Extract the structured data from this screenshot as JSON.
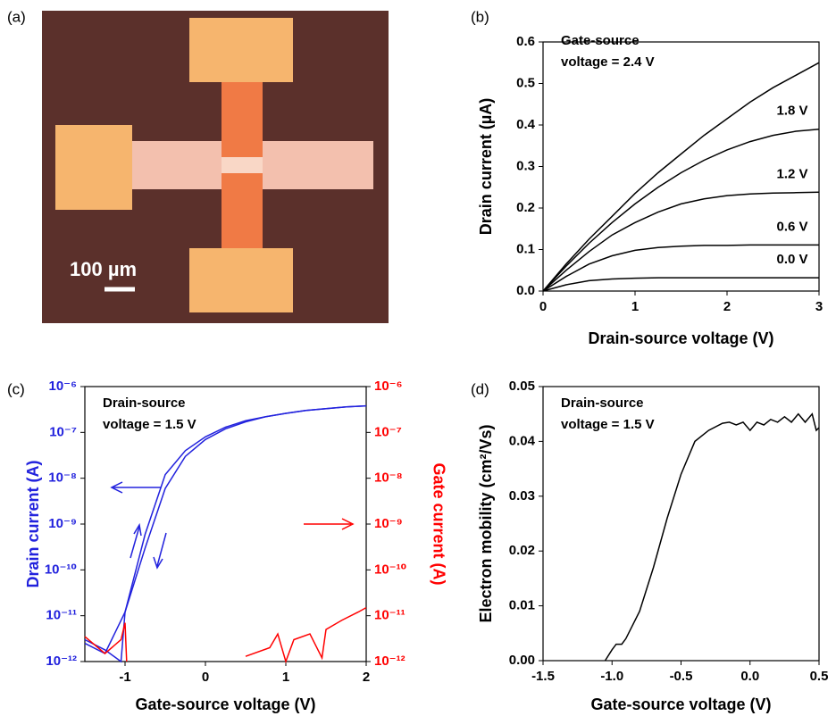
{
  "image_panel": {
    "label": "(a)",
    "scale_bar": "100 µm"
  },
  "chart_data": [
    {
      "type": "line",
      "panel_label": "(b)",
      "annotations": [
        "Gate-source",
        "voltage = 2.4 V"
      ],
      "x_label": "Drain-source voltage (V)",
      "y_label": "Drain current (µA)",
      "xlim": [
        0,
        3
      ],
      "xticks": [
        0,
        1,
        2,
        3
      ],
      "ylim": [
        0,
        0.6
      ],
      "yticks": [
        {
          "value": 0,
          "label": "0.0"
        },
        0.1,
        0.2,
        0.3,
        0.4,
        0.5,
        0.6
      ],
      "x": [
        0,
        0.25,
        0.5,
        0.75,
        1,
        1.25,
        1.5,
        1.75,
        2,
        2.25,
        2.5,
        2.75,
        3
      ],
      "series": [
        {
          "color": "#000000",
          "values": [
            0,
            0.065,
            0.125,
            0.18,
            0.235,
            0.285,
            0.33,
            0.375,
            0.415,
            0.455,
            0.49,
            0.52,
            0.55
          ]
        },
        {
          "name": "1.8 V",
          "color": "#000000",
          "values": [
            0,
            0.06,
            0.115,
            0.165,
            0.21,
            0.25,
            0.285,
            0.315,
            0.34,
            0.36,
            0.375,
            0.385,
            0.39
          ]
        },
        {
          "name": "1.2 V",
          "color": "#000000",
          "values": [
            0,
            0.05,
            0.095,
            0.135,
            0.165,
            0.19,
            0.21,
            0.222,
            0.23,
            0.234,
            0.236,
            0.237,
            0.238
          ]
        },
        {
          "name": "0.6 V",
          "color": "#000000",
          "values": [
            0,
            0.035,
            0.065,
            0.085,
            0.098,
            0.105,
            0.108,
            0.11,
            0.11,
            0.111,
            0.111,
            0.111,
            0.111
          ]
        },
        {
          "name": "0.0 V",
          "color": "#000000",
          "values": [
            0,
            0.015,
            0.025,
            0.029,
            0.031,
            0.032,
            0.032,
            0.032,
            0.032,
            0.032,
            0.032,
            0.032,
            0.032
          ]
        }
      ]
    },
    {
      "type": "line",
      "panel_label": "(c)",
      "annotations": [
        "Drain-source",
        "voltage = 1.5 V"
      ],
      "x_label": "Gate-source voltage (V)",
      "y_label": "Drain current (A)",
      "y2_label": "Gate current (A)",
      "log_y": true,
      "xlim": [
        -1.5,
        2
      ],
      "xticks": [
        -1,
        0,
        1,
        2
      ],
      "ylim": [
        1e-12,
        1e-06
      ],
      "yticks": [
        {
          "value": 1e-12,
          "label": "10⁻¹²"
        },
        {
          "value": 1e-11,
          "label": "10⁻¹¹"
        },
        {
          "value": 1e-10,
          "label": "10⁻¹⁰"
        },
        {
          "value": 1e-09,
          "label": "10⁻⁹"
        },
        {
          "value": 1e-08,
          "label": "10⁻⁸"
        },
        {
          "value": 1e-07,
          "label": "10⁻⁷"
        },
        {
          "value": 1e-06,
          "label": "10⁻⁶"
        }
      ],
      "y2lim": [
        1e-12,
        1e-06
      ],
      "y2ticks": [
        {
          "value": 1e-12,
          "label": "10⁻¹²"
        },
        {
          "value": 1e-11,
          "label": "10⁻¹¹"
        },
        {
          "value": 1e-10,
          "label": "10⁻¹⁰"
        },
        {
          "value": 1e-09,
          "label": "10⁻⁹"
        },
        {
          "value": 1e-08,
          "label": "10⁻⁸"
        },
        {
          "value": 1e-07,
          "label": "10⁻⁷"
        },
        {
          "value": 1e-06,
          "label": "10⁻⁶"
        }
      ],
      "series": [
        {
          "color": "#2222dd",
          "x": [
            -1.5,
            -1.25,
            -1,
            -0.75,
            -0.5,
            -0.25,
            0,
            0.25,
            0.5,
            0.75,
            1,
            1.25,
            1.5,
            1.75,
            2
          ],
          "values": [
            2.5e-12,
            1.5e-12,
            1.2e-11,
            6e-10,
            1.2e-08,
            4e-08,
            8e-08,
            1.3e-07,
            1.8e-07,
            2.2e-07,
            2.6e-07,
            3e-07,
            3.3e-07,
            3.6e-07,
            3.8e-07
          ]
        },
        {
          "color": "#2222dd",
          "x": [
            -1.5,
            -1.25,
            -1.05,
            -1,
            -0.75,
            -0.5,
            -0.25,
            0,
            0.25,
            0.5,
            0.75,
            1,
            1.25,
            1.5,
            1.75,
            2
          ],
          "values": [
            3e-12,
            1.8e-12,
            1e-12,
            1.2e-11,
            3e-10,
            6e-09,
            3e-08,
            7e-08,
            1.2e-07,
            1.7e-07,
            2.2e-07,
            2.6e-07,
            3e-07,
            3.3e-07,
            3.6e-07,
            3.8e-07
          ]
        },
        {
          "color": "#ff0000",
          "axis": "y2",
          "x": [
            -1.5,
            -1.25,
            -1.05,
            -1,
            -0.98,
            0.3,
            0.5,
            0.8,
            0.9,
            1.0,
            1.1,
            1.3,
            1.45,
            1.5,
            1.7,
            1.9,
            2
          ],
          "values": [
            3.5e-12,
            1.5e-12,
            3e-12,
            7e-12,
            1e-12,
            null,
            1.3e-12,
            2e-12,
            4e-12,
            1e-12,
            3e-12,
            4e-12,
            1.2e-12,
            5e-12,
            8e-12,
            1.2e-11,
            1.5e-11
          ]
        }
      ]
    },
    {
      "type": "line",
      "panel_label": "(d)",
      "annotations": [
        "Drain-source",
        "voltage = 1.5 V"
      ],
      "x_label": "Gate-source voltage (V)",
      "y_label": "Electron mobility (cm²/Vs)",
      "xlim": [
        -1.5,
        0.5
      ],
      "xticks": [
        -1.5,
        {
          "value": -1,
          "label": "-1.0"
        },
        -0.5,
        {
          "value": 0,
          "label": "0.0"
        },
        0.5
      ],
      "ylim": [
        0,
        0.05
      ],
      "yticks": [
        {
          "value": 0,
          "label": "0.00"
        },
        {
          "value": 0.01,
          "label": "0.01"
        },
        {
          "value": 0.02,
          "label": "0.02"
        },
        {
          "value": 0.03,
          "label": "0.03"
        },
        {
          "value": 0.04,
          "label": "0.04"
        },
        {
          "value": 0.05,
          "label": "0.05"
        }
      ],
      "series": [
        {
          "color": "#000000",
          "x": [
            -1.05,
            -1,
            -0.97,
            -0.93,
            -0.9,
            -0.8,
            -0.7,
            -0.6,
            -0.5,
            -0.4,
            -0.3,
            -0.2,
            -0.15,
            -0.1,
            -0.05,
            0,
            0.05,
            0.1,
            0.15,
            0.2,
            0.25,
            0.3,
            0.35,
            0.4,
            0.45,
            0.48,
            0.5
          ],
          "values": [
            0,
            0.002,
            0.003,
            0.003,
            0.004,
            0.009,
            0.017,
            0.026,
            0.034,
            0.04,
            0.042,
            0.0433,
            0.0435,
            0.043,
            0.0435,
            0.042,
            0.0435,
            0.043,
            0.044,
            0.0435,
            0.0445,
            0.0435,
            0.045,
            0.0435,
            0.045,
            0.042,
            0.0425
          ]
        }
      ]
    }
  ]
}
